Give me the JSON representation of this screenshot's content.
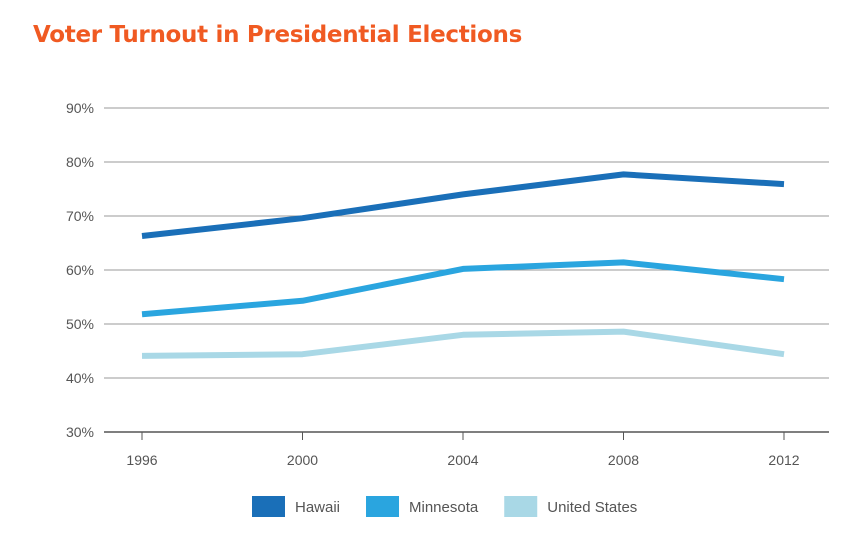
{
  "title": "Voter Turnout in Presidential Elections",
  "colors": {
    "title": "#f05a22",
    "grid": "#9a9a9a",
    "axis": "#555555",
    "text": "#555555"
  },
  "chart_data": {
    "type": "line",
    "title": "Voter Turnout in Presidential Elections",
    "xlabel": "",
    "ylabel": "",
    "x": [
      "1996",
      "2000",
      "2004",
      "2008",
      "2012"
    ],
    "y_ticks": [
      "30%",
      "40%",
      "50%",
      "60%",
      "70%",
      "80%",
      "90%"
    ],
    "ylim": [
      30,
      90
    ],
    "grid": true,
    "legend_position": "bottom-center",
    "series": [
      {
        "name": "Hawaii",
        "color": "#1a6fb8",
        "values": [
          66.3,
          69.6,
          74.0,
          77.7,
          75.9
        ]
      },
      {
        "name": "Minnesota",
        "color": "#2aa5df",
        "values": [
          51.8,
          54.3,
          60.2,
          61.4,
          58.3
        ]
      },
      {
        "name": "United States",
        "color": "#a9d8e6",
        "values": [
          44.1,
          44.4,
          48.0,
          48.6,
          44.4
        ]
      }
    ]
  }
}
